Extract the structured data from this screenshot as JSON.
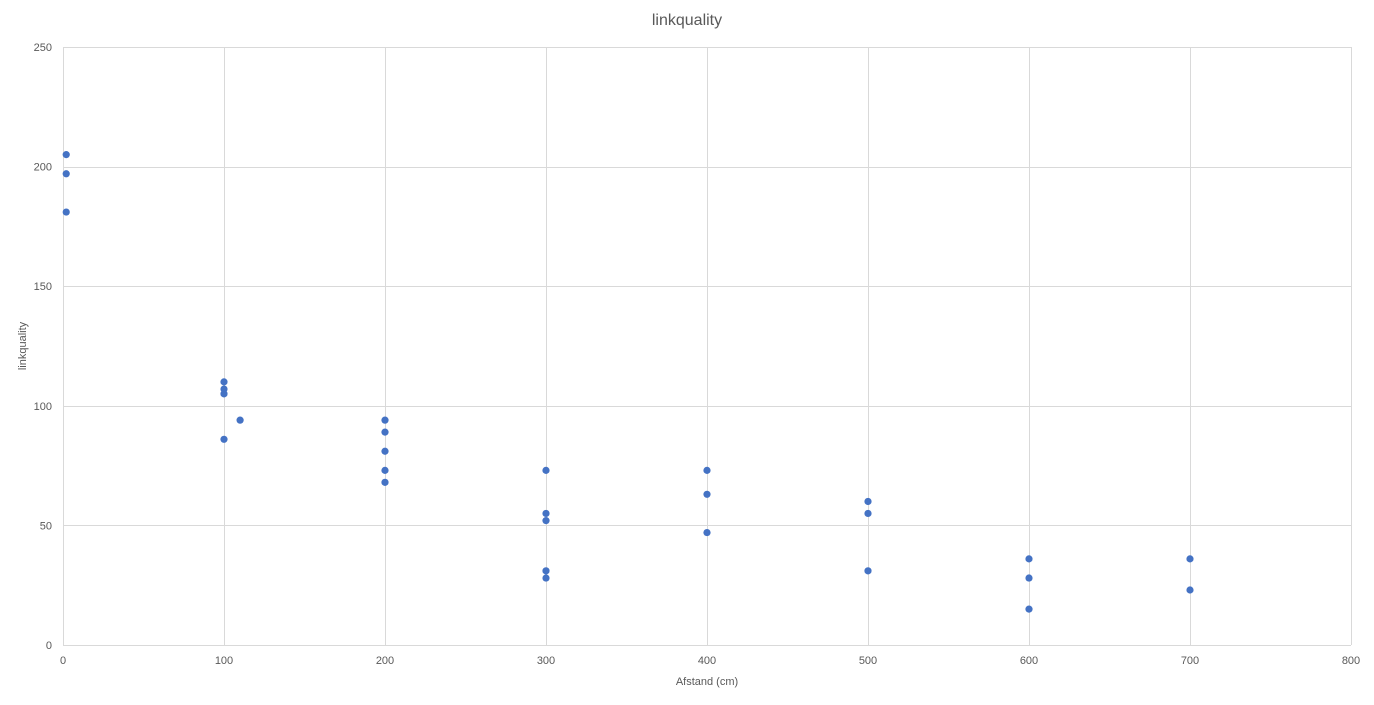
{
  "chart_data": {
    "type": "scatter",
    "title": "linkquality",
    "xlabel": "Afstand (cm)",
    "ylabel": "linkquality",
    "xlim": [
      0,
      800
    ],
    "ylim": [
      0,
      250
    ],
    "x_ticks": [
      0,
      100,
      200,
      300,
      400,
      500,
      600,
      700,
      800
    ],
    "y_ticks": [
      0,
      50,
      100,
      150,
      200,
      250
    ],
    "grid": true,
    "legend": "none",
    "color": "#4472c4",
    "points": [
      {
        "x": 2,
        "y": 205
      },
      {
        "x": 2,
        "y": 197
      },
      {
        "x": 2,
        "y": 181
      },
      {
        "x": 100,
        "y": 110
      },
      {
        "x": 100,
        "y": 107
      },
      {
        "x": 100,
        "y": 105
      },
      {
        "x": 100,
        "y": 86
      },
      {
        "x": 110,
        "y": 94
      },
      {
        "x": 200,
        "y": 94
      },
      {
        "x": 200,
        "y": 89
      },
      {
        "x": 200,
        "y": 81
      },
      {
        "x": 200,
        "y": 73
      },
      {
        "x": 200,
        "y": 68
      },
      {
        "x": 300,
        "y": 73
      },
      {
        "x": 300,
        "y": 55
      },
      {
        "x": 300,
        "y": 52
      },
      {
        "x": 300,
        "y": 31
      },
      {
        "x": 300,
        "y": 28
      },
      {
        "x": 400,
        "y": 73
      },
      {
        "x": 400,
        "y": 63
      },
      {
        "x": 400,
        "y": 47
      },
      {
        "x": 500,
        "y": 60
      },
      {
        "x": 500,
        "y": 55
      },
      {
        "x": 500,
        "y": 31
      },
      {
        "x": 600,
        "y": 36
      },
      {
        "x": 600,
        "y": 28
      },
      {
        "x": 600,
        "y": 15
      },
      {
        "x": 700,
        "y": 36
      },
      {
        "x": 700,
        "y": 23
      }
    ]
  }
}
